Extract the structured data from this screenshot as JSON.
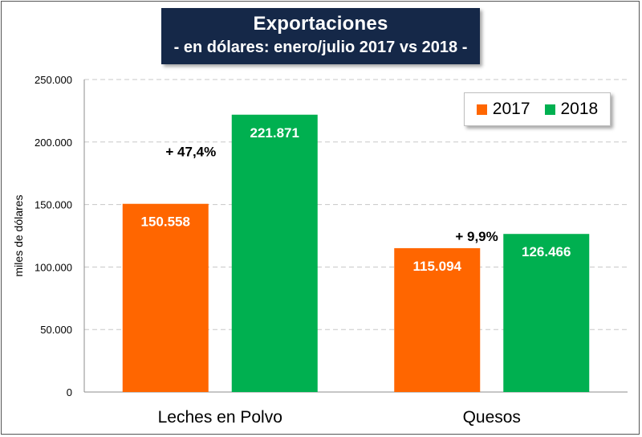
{
  "chart_data": {
    "type": "bar",
    "title": "Exportaciones",
    "subtitle": "- en dólares: enero/julio 2017 vs 2018 -",
    "xlabel": "",
    "ylabel": "miles de dólares",
    "ylim": [
      0,
      250000
    ],
    "yticks": [
      0,
      50000,
      100000,
      150000,
      200000,
      250000
    ],
    "ytick_labels": [
      "0",
      "50.000",
      "100.000",
      "150.000",
      "200.000",
      "250.000"
    ],
    "grid": "horizontal dashed",
    "legend_position": "top-right",
    "categories": [
      "Leches en Polvo",
      "Quesos"
    ],
    "series": [
      {
        "name": "2017",
        "color": "#FF6600",
        "values": [
          150558,
          115094
        ],
        "labels": [
          "150.558",
          "115.094"
        ]
      },
      {
        "name": "2018",
        "color": "#00B050",
        "values": [
          221871,
          126466
        ],
        "labels": [
          "221.871",
          "126.466"
        ]
      }
    ],
    "annotations": [
      {
        "category_index": 0,
        "text": "+ 47,4%"
      },
      {
        "category_index": 1,
        "text": "+ 9,9%"
      }
    ]
  }
}
